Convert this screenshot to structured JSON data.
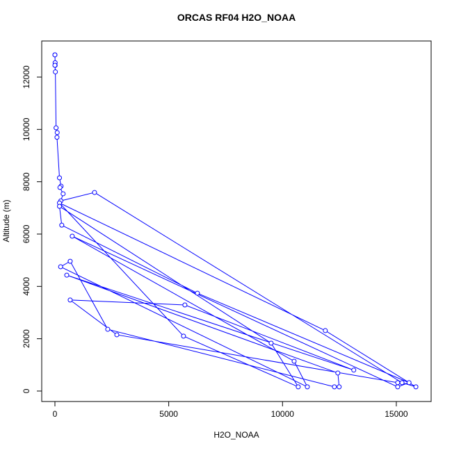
{
  "chart_data": {
    "type": "line",
    "title": "ORCAS RF04 H2O_NOAA",
    "xlabel": "H2O_NOAA",
    "ylabel": "Altitude (m)",
    "x": [
      0,
      0,
      10,
      10,
      0,
      20,
      50,
      100,
      90,
      200,
      270,
      220,
      360,
      260,
      1740,
      15250,
      15860,
      11880,
      200,
      5650,
      10690,
      9500,
      200,
      300,
      6260,
      15560,
      15060,
      760,
      10510,
      11090,
      250,
      670,
      2320,
      12280,
      12490,
      12430,
      520,
      13130,
      5710,
      670,
      2720,
      15060
    ],
    "series": [
      {
        "name": "H2O_NOAA",
        "color": "#0000ff",
        "values": [
          12850,
          12850,
          12550,
          12450,
          12450,
          12200,
          10060,
          9880,
          9700,
          8150,
          7830,
          7780,
          7540,
          7270,
          7590,
          320,
          160,
          2310,
          7190,
          2100,
          160,
          1830,
          7060,
          6340,
          3740,
          320,
          160,
          5920,
          1140,
          160,
          4750,
          4960,
          2360,
          160,
          160,
          690,
          4430,
          800,
          3290,
          3480,
          2150,
          320
        ]
      }
    ],
    "xlim": [
      -580,
      16530
    ],
    "ylim": [
      -400,
      13380
    ],
    "xticks": [
      0,
      5000,
      10000,
      15000
    ],
    "yticks": [
      0,
      2000,
      4000,
      6000,
      8000,
      10000,
      12000
    ]
  }
}
